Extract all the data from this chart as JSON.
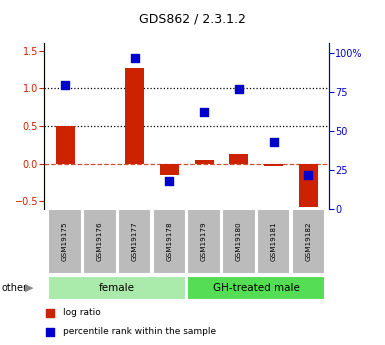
{
  "title": "GDS862 / 2.3.1.2",
  "samples": [
    "GSM19175",
    "GSM19176",
    "GSM19177",
    "GSM19178",
    "GSM19179",
    "GSM19180",
    "GSM19181",
    "GSM19182"
  ],
  "log_ratio": [
    0.5,
    0.0,
    1.27,
    -0.15,
    0.05,
    0.13,
    -0.03,
    -0.58
  ],
  "percentile_rank": [
    80,
    null,
    97,
    18,
    62,
    77,
    43,
    22
  ],
  "groups": [
    {
      "label": "female",
      "start": 0,
      "end": 3,
      "color": "#AAEAAA"
    },
    {
      "label": "GH-treated male",
      "start": 4,
      "end": 7,
      "color": "#55DD55"
    }
  ],
  "ylim_left": [
    -0.6,
    1.6
  ],
  "ylim_right": [
    0,
    106.67
  ],
  "yticks_left": [
    -0.5,
    0.0,
    0.5,
    1.0,
    1.5
  ],
  "yticks_right": [
    0,
    25,
    50,
    75,
    100
  ],
  "bar_color": "#CC2200",
  "dot_color": "#0000CC",
  "bar_width": 0.55,
  "dot_size": 40,
  "legend_items": [
    "log ratio",
    "percentile rank within the sample"
  ],
  "sample_box_color": "#BBBBBB",
  "sample_box_edge": "#FFFFFF"
}
